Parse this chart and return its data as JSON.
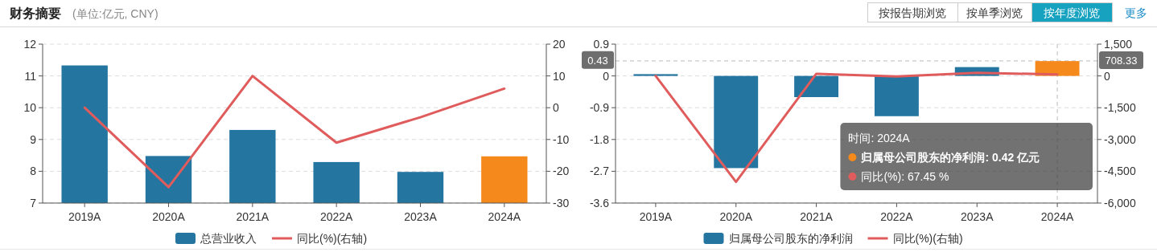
{
  "chart_data": [
    {
      "type": "bar",
      "title": "财务摘要",
      "subtitle": "(单位:亿元, CNY)",
      "annotations": [
        "按报告期浏览",
        "按单季浏览",
        "按年度浏览",
        "更多"
      ],
      "categories": [
        "2019A",
        "2020A",
        "2021A",
        "2022A",
        "2023A",
        "2024A"
      ],
      "ylim": [
        7,
        12
      ],
      "yticks": [
        7,
        8,
        9,
        10,
        11,
        12
      ],
      "y2lim": [
        -30,
        20
      ],
      "y2ticks": [
        -30,
        -20,
        -10,
        0,
        10,
        20
      ],
      "grid": "y",
      "legend": "bottom",
      "series": [
        {
          "name": "总营业收入",
          "color": "#2475a0",
          "colors": [
            "#2475a0",
            "#2475a0",
            "#2475a0",
            "#2475a0",
            "#2475a0",
            "#f5891b"
          ],
          "values": [
            11.33,
            8.48,
            9.3,
            8.29,
            7.98,
            8.47
          ]
        },
        {
          "name": "同比(%)(右轴)",
          "type": "line",
          "axis": "y2",
          "color": "#e05c5c",
          "values": [
            0,
            -25,
            10,
            -11,
            -3,
            6
          ]
        }
      ]
    },
    {
      "type": "bar",
      "annotations": [
        "时间: 2024A",
        "归属母公司股东的净利润: 0.42  亿元",
        "同比(%): 67.45  %",
        {
          "text": "0.43",
          "y": 0.43
        }
      ],
      "categories": [
        "2019A",
        "2020A",
        "2021A",
        "2022A",
        "2023A",
        "2024A"
      ],
      "ylim": [
        -3.6,
        0.9
      ],
      "yticks": [
        -3.6,
        -2.7,
        -1.8,
        -0.9,
        0,
        0.9
      ],
      "y2lim": [
        -6000,
        1500
      ],
      "y2ticks": [
        {
          "value": -6000,
          "label": "-6,000"
        },
        {
          "value": -4500,
          "label": "-4,500"
        },
        {
          "value": -3000,
          "label": "-3,000"
        },
        {
          "value": -1500,
          "label": "-1,500"
        },
        0,
        {
          "value": 1500,
          "label": "1,500"
        }
      ],
      "grid": "y",
      "legend": "bottom",
      "ref_lines": [
        {
          "axis": "y2",
          "value": 708.33,
          "label": "708.33",
          "line_style": "dashed"
        },
        {
          "axis": "x",
          "value": "2024A",
          "line_style": "dashed"
        }
      ],
      "series": [
        {
          "name": "归属母公司股东的净利润",
          "color": "#2475a0",
          "colors": [
            "#2475a0",
            "#2475a0",
            "#2475a0",
            "#2475a0",
            "#2475a0",
            "#f5891b"
          ],
          "values": [
            0.05,
            -2.61,
            -0.6,
            -1.14,
            0.25,
            0.42
          ]
        },
        {
          "name": "同比(%)(右轴)",
          "type": "line",
          "axis": "y2",
          "color": "#e05c5c",
          "values": [
            0,
            -5000,
            100,
            -25,
            150,
            67.45
          ]
        }
      ]
    }
  ]
}
